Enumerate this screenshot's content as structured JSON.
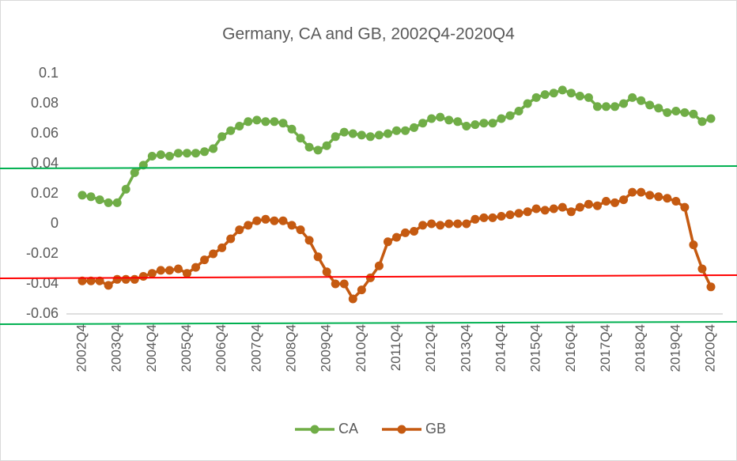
{
  "chart_data": {
    "type": "line",
    "title": "Germany, CA and GB, 2002Q4-2020Q4",
    "categories": [
      "2002Q4",
      null,
      null,
      null,
      "2003Q4",
      null,
      null,
      null,
      "2004Q4",
      null,
      null,
      null,
      "2005Q4",
      null,
      null,
      null,
      "2006Q4",
      null,
      null,
      null,
      "2007Q4",
      null,
      null,
      null,
      "2008Q4",
      null,
      null,
      null,
      "2009Q4",
      null,
      null,
      null,
      "2010Q4",
      null,
      null,
      null,
      "2011Q4",
      null,
      null,
      null,
      "2012Q4",
      null,
      null,
      null,
      "2013Q4",
      null,
      null,
      null,
      "2014Q4",
      null,
      null,
      null,
      "2015Q4",
      null,
      null,
      null,
      "2016Q4",
      null,
      null,
      null,
      "2017Q4",
      null,
      null,
      null,
      "2018Q4",
      null,
      null,
      null,
      "2019Q4",
      null,
      null,
      null,
      "2020Q4"
    ],
    "series": [
      {
        "name": "CA",
        "color": "#70ad47",
        "values": [
          0.019,
          0.018,
          0.016,
          0.014,
          0.014,
          0.023,
          0.034,
          0.039,
          0.045,
          0.046,
          0.045,
          0.047,
          0.047,
          0.047,
          0.048,
          0.05,
          0.058,
          0.062,
          0.065,
          0.068,
          0.069,
          0.068,
          0.068,
          0.067,
          0.063,
          0.057,
          0.051,
          0.049,
          0.052,
          0.058,
          0.061,
          0.06,
          0.059,
          0.058,
          0.059,
          0.06,
          0.062,
          0.062,
          0.064,
          0.067,
          0.07,
          0.071,
          0.069,
          0.068,
          0.065,
          0.066,
          0.067,
          0.067,
          0.07,
          0.072,
          0.075,
          0.08,
          0.084,
          0.086,
          0.087,
          0.089,
          0.087,
          0.085,
          0.084,
          0.078,
          0.078,
          0.078,
          0.08,
          0.084,
          0.082,
          0.079,
          0.077,
          0.074,
          0.075,
          0.074,
          0.073,
          0.068,
          0.07
        ]
      },
      {
        "name": "GB",
        "color": "#c55a11",
        "values": [
          -0.038,
          -0.038,
          -0.038,
          -0.041,
          -0.037,
          -0.037,
          -0.037,
          -0.035,
          -0.033,
          -0.031,
          -0.031,
          -0.03,
          -0.033,
          -0.029,
          -0.024,
          -0.02,
          -0.016,
          -0.01,
          -0.004,
          -0.001,
          0.002,
          0.003,
          0.002,
          0.002,
          -0.001,
          -0.004,
          -0.011,
          -0.022,
          -0.032,
          -0.04,
          -0.04,
          -0.05,
          -0.044,
          -0.036,
          -0.028,
          -0.012,
          -0.009,
          -0.006,
          -0.005,
          -0.001,
          0.0,
          -0.001,
          0.0,
          0.0,
          0.0,
          0.003,
          0.004,
          0.004,
          0.005,
          0.006,
          0.007,
          0.008,
          0.01,
          0.009,
          0.01,
          0.011,
          0.008,
          0.011,
          0.013,
          0.012,
          0.015,
          0.014,
          0.016,
          0.021,
          0.021,
          0.019,
          0.018,
          0.017,
          0.015,
          0.011,
          -0.014,
          -0.03,
          -0.042
        ]
      }
    ],
    "ylim": [
      -0.06,
      0.1
    ],
    "yticks": [
      -0.06,
      -0.04,
      -0.02,
      0,
      0.02,
      0.04,
      0.06,
      0.08,
      0.1
    ],
    "grid": false,
    "legend": "bottom"
  }
}
